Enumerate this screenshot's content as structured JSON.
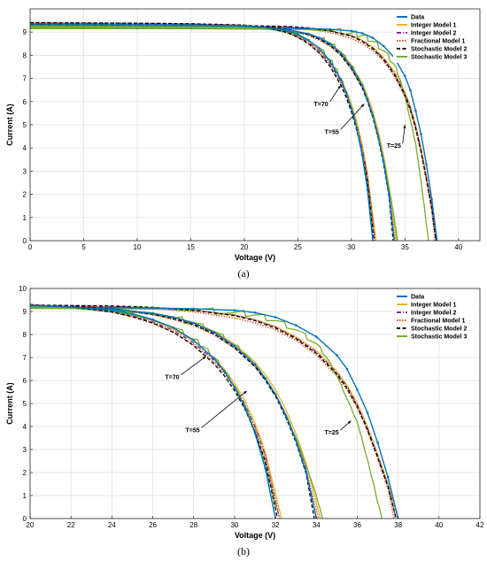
{
  "figure": {
    "labels": [
      "(a)",
      "(b)"
    ]
  },
  "colors": {
    "Data": "#0072BD",
    "Integer Model 1": "#EDB120",
    "Integer Model 2": "#7E2F8E",
    "Fractional  Model 1": "#D95319",
    "Stochastic Model 2": "#000000",
    "Stochastic Model 3": "#77AC30"
  },
  "chart_data": [
    {
      "type": "line",
      "title": "",
      "xlabel": "Voltage (V)",
      "ylabel": "Current (A)",
      "xlim": [
        0,
        42
      ],
      "ylim": [
        0,
        10
      ],
      "xticks": [
        0,
        5,
        10,
        15,
        20,
        25,
        30,
        35,
        40
      ],
      "yticks": [
        0,
        1,
        2,
        3,
        4,
        5,
        6,
        7,
        8,
        9
      ],
      "grid": true,
      "legend_position": "top-right",
      "annotations": [
        {
          "text": "T=70",
          "x": 26.5,
          "y": 5.8,
          "arrow_to": [
            29.0,
            6.7
          ]
        },
        {
          "text": "T=55",
          "x": 27.5,
          "y": 4.6,
          "arrow_to": [
            31.2,
            5.9
          ]
        },
        {
          "text": "T=25",
          "x": 33.3,
          "y": 4.0,
          "arrow_to": [
            35.0,
            5.0
          ]
        }
      ],
      "groups": [
        {
          "temperature": "T=25",
          "series": [
            {
              "name": "Data",
              "x": [
                0,
                5,
                10,
                15,
                20,
                24,
                26,
                28,
                30,
                31,
                32,
                33,
                34,
                35,
                35.5,
                36,
                36.5,
                37,
                37.5,
                38
              ],
              "y": [
                9.2,
                9.2,
                9.19,
                9.18,
                9.17,
                9.16,
                9.15,
                9.12,
                9.05,
                8.95,
                8.75,
                8.4,
                7.9,
                7.1,
                6.5,
                5.6,
                4.6,
                3.3,
                1.8,
                0
              ]
            },
            {
              "name": "Integer Model 1",
              "x": [
                0,
                5,
                10,
                15,
                20,
                24,
                26,
                28,
                30,
                31,
                32,
                33,
                34,
                35,
                35.5,
                36,
                36.5,
                37,
                37.5,
                38
              ],
              "y": [
                9.24,
                9.23,
                9.22,
                9.21,
                9.2,
                9.18,
                9.14,
                9.05,
                8.85,
                8.65,
                8.35,
                7.9,
                7.3,
                6.4,
                5.8,
                5.0,
                4.0,
                2.8,
                1.5,
                0
              ]
            },
            {
              "name": "Integer Model 2",
              "x": [
                0,
                5,
                10,
                15,
                20,
                24,
                26,
                28,
                30,
                31,
                32,
                33,
                34,
                35,
                35.5,
                36,
                36.5,
                37,
                37.5,
                37.9
              ],
              "y": [
                9.3,
                9.29,
                9.28,
                9.27,
                9.26,
                9.22,
                9.17,
                9.06,
                8.84,
                8.63,
                8.32,
                7.86,
                7.24,
                6.35,
                5.74,
                4.93,
                3.93,
                2.74,
                1.46,
                0
              ]
            },
            {
              "name": "Fractional  Model 1",
              "x": [
                0,
                5,
                10,
                15,
                20,
                24,
                26,
                28,
                30,
                31,
                32,
                33,
                34,
                35,
                35.5,
                36,
                36.5,
                37,
                37.5,
                37.8
              ],
              "y": [
                9.35,
                9.33,
                9.31,
                9.29,
                9.26,
                9.2,
                9.13,
                8.98,
                8.72,
                8.5,
                8.2,
                7.75,
                7.1,
                6.2,
                5.6,
                4.8,
                3.8,
                2.6,
                1.3,
                0
              ]
            },
            {
              "name": "Stochastic Model 2",
              "x": [
                0,
                5,
                10,
                15,
                20,
                24,
                26,
                28,
                30,
                31,
                32,
                33,
                34,
                35,
                35.5,
                36,
                36.5,
                37,
                37.5,
                37.9
              ],
              "y": [
                9.33,
                9.32,
                9.31,
                9.3,
                9.28,
                9.24,
                9.18,
                9.05,
                8.82,
                8.6,
                8.28,
                7.82,
                7.18,
                6.28,
                5.66,
                4.86,
                3.86,
                2.66,
                1.4,
                0
              ]
            },
            {
              "name": "Stochastic Model 3",
              "x": [
                0,
                5,
                10,
                15,
                20,
                24,
                26,
                28,
                30,
                31,
                32,
                33,
                34,
                34.5,
                35,
                35.5,
                36,
                36.3,
                36.6,
                36.9,
                37.2
              ],
              "y": [
                9.15,
                9.15,
                9.14,
                9.14,
                9.13,
                9.12,
                9.1,
                9.05,
                8.95,
                8.85,
                8.6,
                8.2,
                7.6,
                7.0,
                6.2,
                5.2,
                4.2,
                3.2,
                2.2,
                1.1,
                0
              ]
            }
          ]
        },
        {
          "temperature": "T=55",
          "series": [
            {
              "name": "Data",
              "x": [
                0,
                5,
                10,
                15,
                20,
                22,
                24,
                26,
                27,
                28,
                29,
                30,
                31,
                31.5,
                32,
                32.5,
                33,
                33.5,
                34
              ],
              "y": [
                9.28,
                9.27,
                9.26,
                9.25,
                9.22,
                9.18,
                9.1,
                8.92,
                8.75,
                8.5,
                8.1,
                7.5,
                6.7,
                6.1,
                5.4,
                4.5,
                3.4,
                2.0,
                0
              ]
            },
            {
              "name": "Integer Model 1",
              "x": [
                0,
                5,
                10,
                15,
                20,
                22,
                24,
                26,
                27,
                28,
                29,
                30,
                31,
                31.5,
                32,
                32.5,
                33,
                33.5,
                34.2
              ],
              "y": [
                9.3,
                9.29,
                9.28,
                9.27,
                9.24,
                9.2,
                9.12,
                8.93,
                8.76,
                8.52,
                8.14,
                7.58,
                6.8,
                6.25,
                5.6,
                4.75,
                3.7,
                2.4,
                0
              ]
            },
            {
              "name": "Integer Model 2",
              "x": [
                0,
                5,
                10,
                15,
                20,
                22,
                24,
                26,
                27,
                28,
                29,
                30,
                31,
                31.5,
                32,
                32.5,
                33,
                33.5,
                34
              ],
              "y": [
                9.32,
                9.31,
                9.3,
                9.29,
                9.26,
                9.21,
                9.12,
                8.9,
                8.72,
                8.47,
                8.07,
                7.48,
                6.68,
                6.1,
                5.42,
                4.55,
                3.5,
                2.15,
                0
              ]
            },
            {
              "name": "Fractional  Model 1",
              "x": [
                0,
                5,
                10,
                15,
                20,
                22,
                24,
                26,
                27,
                28,
                29,
                30,
                31,
                31.5,
                32,
                32.5,
                33,
                33.5,
                34.1
              ],
              "y": [
                9.36,
                9.34,
                9.32,
                9.3,
                9.26,
                9.2,
                9.1,
                8.85,
                8.65,
                8.38,
                7.98,
                7.4,
                6.6,
                6.04,
                5.38,
                4.52,
                3.45,
                2.1,
                0
              ]
            },
            {
              "name": "Stochastic Model 2",
              "x": [
                0,
                5,
                10,
                15,
                20,
                22,
                24,
                26,
                27,
                28,
                29,
                30,
                31,
                31.5,
                32,
                32.5,
                33,
                33.5,
                33.9
              ],
              "y": [
                9.34,
                9.33,
                9.32,
                9.31,
                9.27,
                9.22,
                9.12,
                8.88,
                8.69,
                8.43,
                8.02,
                7.42,
                6.6,
                6.02,
                5.32,
                4.42,
                3.32,
                1.95,
                0
              ]
            },
            {
              "name": "Stochastic Model 3",
              "x": [
                0,
                5,
                10,
                15,
                20,
                22,
                24,
                26,
                27,
                28,
                29,
                30,
                30.5,
                31,
                31.5,
                32,
                32.5,
                33,
                33.5,
                34,
                34.3
              ],
              "y": [
                9.2,
                9.2,
                9.19,
                9.18,
                9.16,
                9.13,
                9.06,
                8.88,
                8.72,
                8.5,
                8.12,
                7.55,
                7.15,
                6.65,
                6.05,
                5.35,
                4.5,
                3.5,
                2.3,
                1.0,
                0
              ]
            }
          ]
        },
        {
          "temperature": "T=70",
          "series": [
            {
              "name": "Data",
              "x": [
                0,
                5,
                10,
                15,
                20,
                22,
                24,
                25,
                26,
                27,
                28,
                29,
                29.5,
                30,
                30.5,
                31,
                31.5,
                32
              ],
              "y": [
                9.35,
                9.34,
                9.33,
                9.31,
                9.27,
                9.2,
                9.05,
                8.9,
                8.65,
                8.3,
                7.75,
                6.95,
                6.4,
                5.7,
                4.85,
                3.7,
                2.2,
                0
              ]
            },
            {
              "name": "Integer Model 1",
              "x": [
                0,
                5,
                10,
                15,
                20,
                22,
                24,
                25,
                26,
                27,
                28,
                29,
                29.5,
                30,
                30.5,
                31,
                31.5,
                32.3
              ],
              "y": [
                9.36,
                9.35,
                9.34,
                9.32,
                9.28,
                9.2,
                9.02,
                8.85,
                8.6,
                8.24,
                7.72,
                6.98,
                6.48,
                5.88,
                5.12,
                4.15,
                2.9,
                0
              ]
            },
            {
              "name": "Integer Model 2",
              "x": [
                0,
                5,
                10,
                15,
                20,
                22,
                24,
                25,
                26,
                27,
                28,
                29,
                29.5,
                30,
                30.5,
                31,
                31.5,
                32.2
              ],
              "y": [
                9.38,
                9.37,
                9.36,
                9.34,
                9.29,
                9.2,
                9.0,
                8.82,
                8.55,
                8.18,
                7.64,
                6.88,
                6.37,
                5.75,
                4.98,
                4.0,
                2.75,
                0
              ]
            },
            {
              "name": "Fractional  Model 1",
              "x": [
                0,
                5,
                10,
                15,
                20,
                22,
                24,
                25,
                26,
                27,
                28,
                29,
                29.5,
                30,
                30.5,
                31,
                31.5,
                32.2
              ],
              "y": [
                9.42,
                9.4,
                9.38,
                9.35,
                9.29,
                9.18,
                8.96,
                8.76,
                8.48,
                8.1,
                7.56,
                6.8,
                6.3,
                5.68,
                4.92,
                3.95,
                2.7,
                0
              ]
            },
            {
              "name": "Stochastic Model 2",
              "x": [
                0,
                5,
                10,
                15,
                20,
                22,
                24,
                25,
                26,
                27,
                28,
                29,
                29.5,
                30,
                30.5,
                31,
                31.5,
                32.1
              ],
              "y": [
                9.4,
                9.39,
                9.38,
                9.36,
                9.3,
                9.2,
                8.98,
                8.78,
                8.5,
                8.1,
                7.52,
                6.72,
                6.2,
                5.56,
                4.76,
                3.76,
                2.5,
                0
              ]
            },
            {
              "name": "Stochastic Model 3",
              "x": [
                0,
                5,
                10,
                15,
                20,
                22,
                24,
                25,
                26,
                27,
                28,
                28.5,
                29,
                29.5,
                30,
                30.5,
                31,
                31.5,
                32
              ],
              "y": [
                9.25,
                9.25,
                9.24,
                9.23,
                9.2,
                9.14,
                9.0,
                8.85,
                8.62,
                8.3,
                7.8,
                7.45,
                7.0,
                6.45,
                5.75,
                4.9,
                3.8,
                2.4,
                0.5
              ]
            }
          ]
        }
      ]
    },
    {
      "type": "line",
      "title": "",
      "xlabel": "Voltage (V)",
      "ylabel": "Current (A)",
      "xlim": [
        20,
        42
      ],
      "ylim": [
        0,
        10
      ],
      "xticks": [
        20,
        22,
        24,
        26,
        28,
        30,
        32,
        34,
        36,
        38,
        40,
        42
      ],
      "yticks": [
        0,
        1,
        2,
        3,
        4,
        5,
        6,
        7,
        8,
        9,
        10
      ],
      "grid": true,
      "legend_position": "top-right",
      "annotations": [
        {
          "text": "T=70",
          "x": 26.6,
          "y": 6.05,
          "arrow_to": [
            28.6,
            7.05
          ]
        },
        {
          "text": "T=55",
          "x": 27.6,
          "y": 3.75,
          "arrow_to": [
            30.6,
            5.55
          ]
        },
        {
          "text": "T=25",
          "x": 34.4,
          "y": 3.65,
          "arrow_to": [
            35.7,
            4.25
          ]
        }
      ],
      "groups": "same as panel (a), x range 20–42"
    }
  ],
  "legend": [
    "Data",
    "Integer Model 1",
    "Integer Model 2",
    "Fractional  Model 1",
    "Stochastic Model 2",
    "Stochastic Model 3"
  ]
}
